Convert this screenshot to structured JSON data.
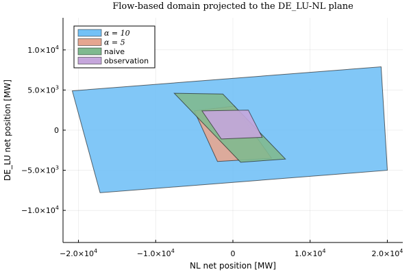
{
  "chart_data": {
    "type": "area",
    "title": "Flow-based domain projected to the DE_LU-NL plane",
    "xlabel": "NL net position [MW]",
    "ylabel": "DE_LU net position [MW]",
    "xlim": [
      -22000,
      22000
    ],
    "ylim": [
      -14000,
      14000
    ],
    "grid": true,
    "legend_position": "top-left",
    "x_ticks": [
      {
        "value": -20000,
        "mant": "−2.0×10",
        "exp": "4"
      },
      {
        "value": -10000,
        "mant": "−1.0×10",
        "exp": "4"
      },
      {
        "value": 0,
        "mant": "0",
        "exp": ""
      },
      {
        "value": 10000,
        "mant": "1.0×10",
        "exp": "4"
      },
      {
        "value": 20000,
        "mant": "2.0×10",
        "exp": "4"
      }
    ],
    "y_ticks": [
      {
        "value": 10000,
        "mant": "1.0×10",
        "exp": "4"
      },
      {
        "value": 5000,
        "mant": "5.0×10",
        "exp": "3"
      },
      {
        "value": 0,
        "mant": "0",
        "exp": ""
      },
      {
        "value": -5000,
        "mant": "−5.0×10",
        "exp": "3"
      },
      {
        "value": -10000,
        "mant": "−1.0×10",
        "exp": "4"
      }
    ],
    "series": [
      {
        "name": "α = 10",
        "name_math": true,
        "color": "#73c1f6",
        "points": [
          [
            -20800,
            4900
          ],
          [
            19200,
            7900
          ],
          [
            20000,
            -5000
          ],
          [
            -17200,
            -7800
          ]
        ]
      },
      {
        "name": "α = 5",
        "name_math": true,
        "color": "#e5a690",
        "points": [
          [
            -5000,
            2400
          ],
          [
            200,
            3000
          ],
          [
            5000,
            -3500
          ],
          [
            -2000,
            -3900
          ]
        ]
      },
      {
        "name": "naive",
        "name_math": false,
        "color": "#7fb98f",
        "points": [
          [
            -7600,
            4600
          ],
          [
            -1300,
            4500
          ],
          [
            6800,
            -3600
          ],
          [
            1000,
            -4000
          ]
        ]
      },
      {
        "name": "observation",
        "name_math": false,
        "color": "#c5a6db",
        "points": [
          [
            -4000,
            2400
          ],
          [
            2000,
            2500
          ],
          [
            3800,
            -900
          ],
          [
            -1500,
            -1100
          ]
        ]
      }
    ]
  }
}
